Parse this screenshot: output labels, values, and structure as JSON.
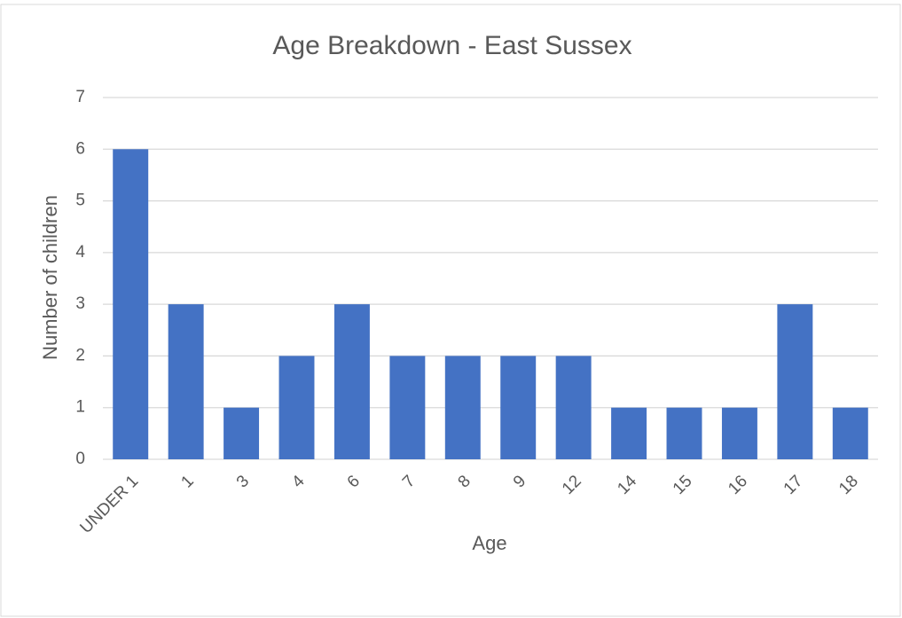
{
  "chart_data": {
    "type": "bar",
    "title": "Age Breakdown - East Sussex",
    "xlabel": "Age",
    "ylabel": "Number of children",
    "categories": [
      "UNDER 1",
      "1",
      "3",
      "4",
      "6",
      "7",
      "8",
      "9",
      "12",
      "14",
      "15",
      "16",
      "17",
      "18"
    ],
    "values": [
      6,
      3,
      1,
      2,
      3,
      2,
      2,
      2,
      2,
      1,
      1,
      1,
      3,
      1
    ],
    "color": "#4472c4",
    "ylim": [
      0,
      7
    ],
    "yticks": [
      0,
      1,
      2,
      3,
      4,
      5,
      6,
      7
    ],
    "grid": true
  }
}
